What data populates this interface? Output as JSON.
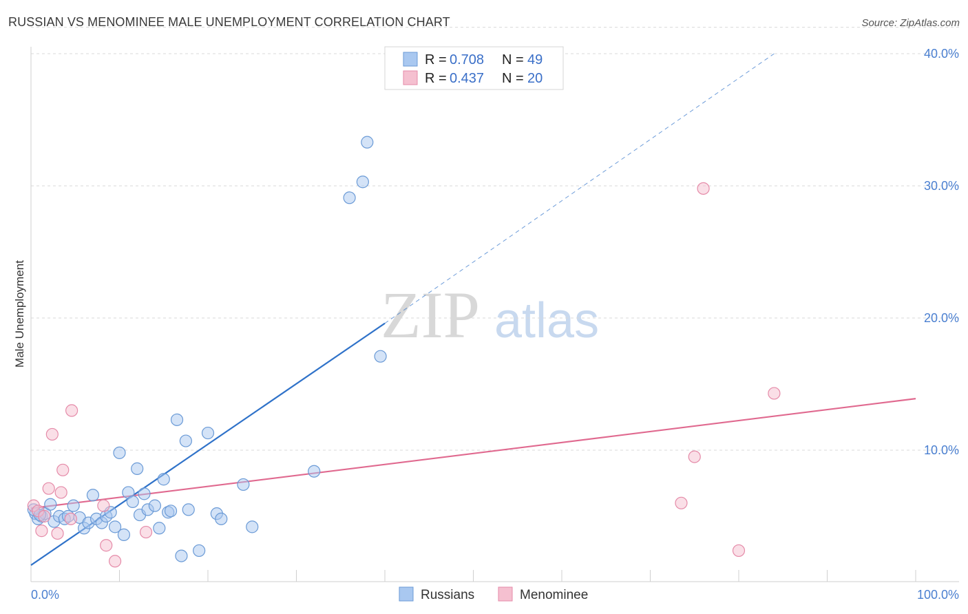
{
  "header": {
    "title": "RUSSIAN VS MENOMINEE MALE UNEMPLOYMENT CORRELATION CHART",
    "source": "Source: ZipAtlas.com"
  },
  "watermark": {
    "zip": "ZIP",
    "atlas": "atlas"
  },
  "colors": {
    "russians_fill": "#a9c8f0",
    "russians_stroke": "#6a9ad6",
    "russians_line": "#2f72c9",
    "menominee_fill": "#f5c0d0",
    "menominee_stroke": "#e58aa8",
    "menominee_line": "#e0698f",
    "grid": "#d9d9d9",
    "tick_label": "#4a7fd0"
  },
  "legend": {
    "rows": [
      {
        "r_label": "R = ",
        "r_value": "0.708",
        "n_label": "N = ",
        "n_value": "49"
      },
      {
        "r_label": "R = ",
        "r_value": "0.437",
        "n_label": "N = ",
        "n_value": "20"
      }
    ]
  },
  "chart_data": {
    "type": "scatter",
    "title": "RUSSIAN VS MENOMINEE MALE UNEMPLOYMENT CORRELATION CHART",
    "xlabel": "",
    "ylabel": "Male Unemployment",
    "xlim": [
      0,
      100
    ],
    "ylim": [
      0,
      42
    ],
    "x_tick_labels": [
      {
        "value": 0,
        "label": "0.0%"
      },
      {
        "value": 100,
        "label": "100.0%"
      }
    ],
    "y_tick_labels": [
      {
        "value": 10,
        "label": "10.0%"
      },
      {
        "value": 20,
        "label": "20.0%"
      },
      {
        "value": 30,
        "label": "30.0%"
      },
      {
        "value": 40,
        "label": "40.0%"
      }
    ],
    "grid": true,
    "legend_position": "top-center",
    "series": [
      {
        "name": "Russians",
        "R": 0.708,
        "N": 49,
        "trend": {
          "x0": 0,
          "y0": 1.3,
          "x1": 40,
          "y1": 19.6,
          "dashed_to_x": 84,
          "dashed_to_y": 40
        },
        "points": [
          [
            0.5,
            5.2
          ],
          [
            0.8,
            4.8
          ],
          [
            1.2,
            5.0
          ],
          [
            1.6,
            5.2
          ],
          [
            2.2,
            5.9
          ],
          [
            2.6,
            4.6
          ],
          [
            3.2,
            5.0
          ],
          [
            3.8,
            4.8
          ],
          [
            4.2,
            5.0
          ],
          [
            4.8,
            5.8
          ],
          [
            5.5,
            4.9
          ],
          [
            6.0,
            4.1
          ],
          [
            6.5,
            4.5
          ],
          [
            7.0,
            6.6
          ],
          [
            7.4,
            4.8
          ],
          [
            8.0,
            4.5
          ],
          [
            8.5,
            5.0
          ],
          [
            9.0,
            5.3
          ],
          [
            9.5,
            4.2
          ],
          [
            10.0,
            9.8
          ],
          [
            10.5,
            3.6
          ],
          [
            11.0,
            6.8
          ],
          [
            11.5,
            6.1
          ],
          [
            12.0,
            8.6
          ],
          [
            12.3,
            5.1
          ],
          [
            12.8,
            6.7
          ],
          [
            13.2,
            5.5
          ],
          [
            14.0,
            5.8
          ],
          [
            14.5,
            4.1
          ],
          [
            15.0,
            7.8
          ],
          [
            15.5,
            5.3
          ],
          [
            15.8,
            5.4
          ],
          [
            16.5,
            12.3
          ],
          [
            17.0,
            2.0
          ],
          [
            17.5,
            10.7
          ],
          [
            17.8,
            5.5
          ],
          [
            19.0,
            2.4
          ],
          [
            20.0,
            11.3
          ],
          [
            21.0,
            5.2
          ],
          [
            21.5,
            4.8
          ],
          [
            24.0,
            7.4
          ],
          [
            25.0,
            4.2
          ],
          [
            32.0,
            8.4
          ],
          [
            36.0,
            29.1
          ],
          [
            37.5,
            30.3
          ],
          [
            38.0,
            33.3
          ],
          [
            39.5,
            17.1
          ],
          [
            0.3,
            5.5
          ],
          [
            1.0,
            5.1
          ]
        ]
      },
      {
        "name": "Menominee",
        "R": 0.437,
        "N": 20,
        "trend": {
          "x0": 0,
          "y0": 5.6,
          "x1": 100,
          "y1": 13.9
        },
        "points": [
          [
            0.3,
            5.8
          ],
          [
            0.8,
            5.4
          ],
          [
            1.2,
            3.9
          ],
          [
            2.0,
            7.1
          ],
          [
            2.4,
            11.2
          ],
          [
            3.0,
            3.7
          ],
          [
            3.4,
            6.8
          ],
          [
            3.6,
            8.5
          ],
          [
            4.5,
            4.8
          ],
          [
            4.6,
            13.0
          ],
          [
            8.2,
            5.8
          ],
          [
            8.5,
            2.8
          ],
          [
            9.5,
            1.6
          ],
          [
            13.0,
            3.8
          ],
          [
            73.5,
            6.0
          ],
          [
            75.0,
            9.5
          ],
          [
            76.0,
            29.8
          ],
          [
            80.0,
            2.4
          ],
          [
            84.0,
            14.3
          ],
          [
            1.5,
            5.0
          ]
        ]
      }
    ]
  }
}
